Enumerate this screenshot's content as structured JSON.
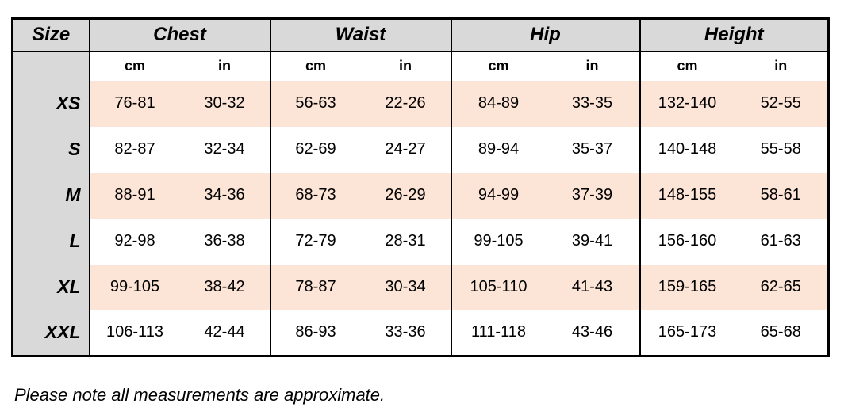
{
  "table": {
    "header": {
      "size_label": "Size",
      "groups": [
        {
          "label": "Chest"
        },
        {
          "label": "Waist"
        },
        {
          "label": "Hip"
        },
        {
          "label": "Height"
        }
      ],
      "unit_cm": "cm",
      "unit_in": "in"
    },
    "rows": [
      {
        "size": "XS",
        "shaded": true,
        "values": [
          "76-81",
          "30-32",
          "56-63",
          "22-26",
          "84-89",
          "33-35",
          "132-140",
          "52-55"
        ]
      },
      {
        "size": "S",
        "shaded": false,
        "values": [
          "82-87",
          "32-34",
          "62-69",
          "24-27",
          "89-94",
          "35-37",
          "140-148",
          "55-58"
        ]
      },
      {
        "size": "M",
        "shaded": true,
        "values": [
          "88-91",
          "34-36",
          "68-73",
          "26-29",
          "94-99",
          "37-39",
          "148-155",
          "58-61"
        ]
      },
      {
        "size": "L",
        "shaded": false,
        "values": [
          "92-98",
          "36-38",
          "72-79",
          "28-31",
          "99-105",
          "39-41",
          "156-160",
          "61-63"
        ]
      },
      {
        "size": "XL",
        "shaded": true,
        "values": [
          "99-105",
          "38-42",
          "78-87",
          "30-34",
          "105-110",
          "41-43",
          "159-165",
          "62-65"
        ]
      },
      {
        "size": "XXL",
        "shaded": false,
        "values": [
          "106-113",
          "42-44",
          "86-93",
          "33-36",
          "111-118",
          "43-46",
          "165-173",
          "65-68"
        ]
      }
    ]
  },
  "note": "Please note all measurements are approximate.",
  "colors": {
    "header_bg": "#d9d9d9",
    "shaded_row_bg": "#fce4d6",
    "border": "#000000",
    "text": "#000000"
  }
}
